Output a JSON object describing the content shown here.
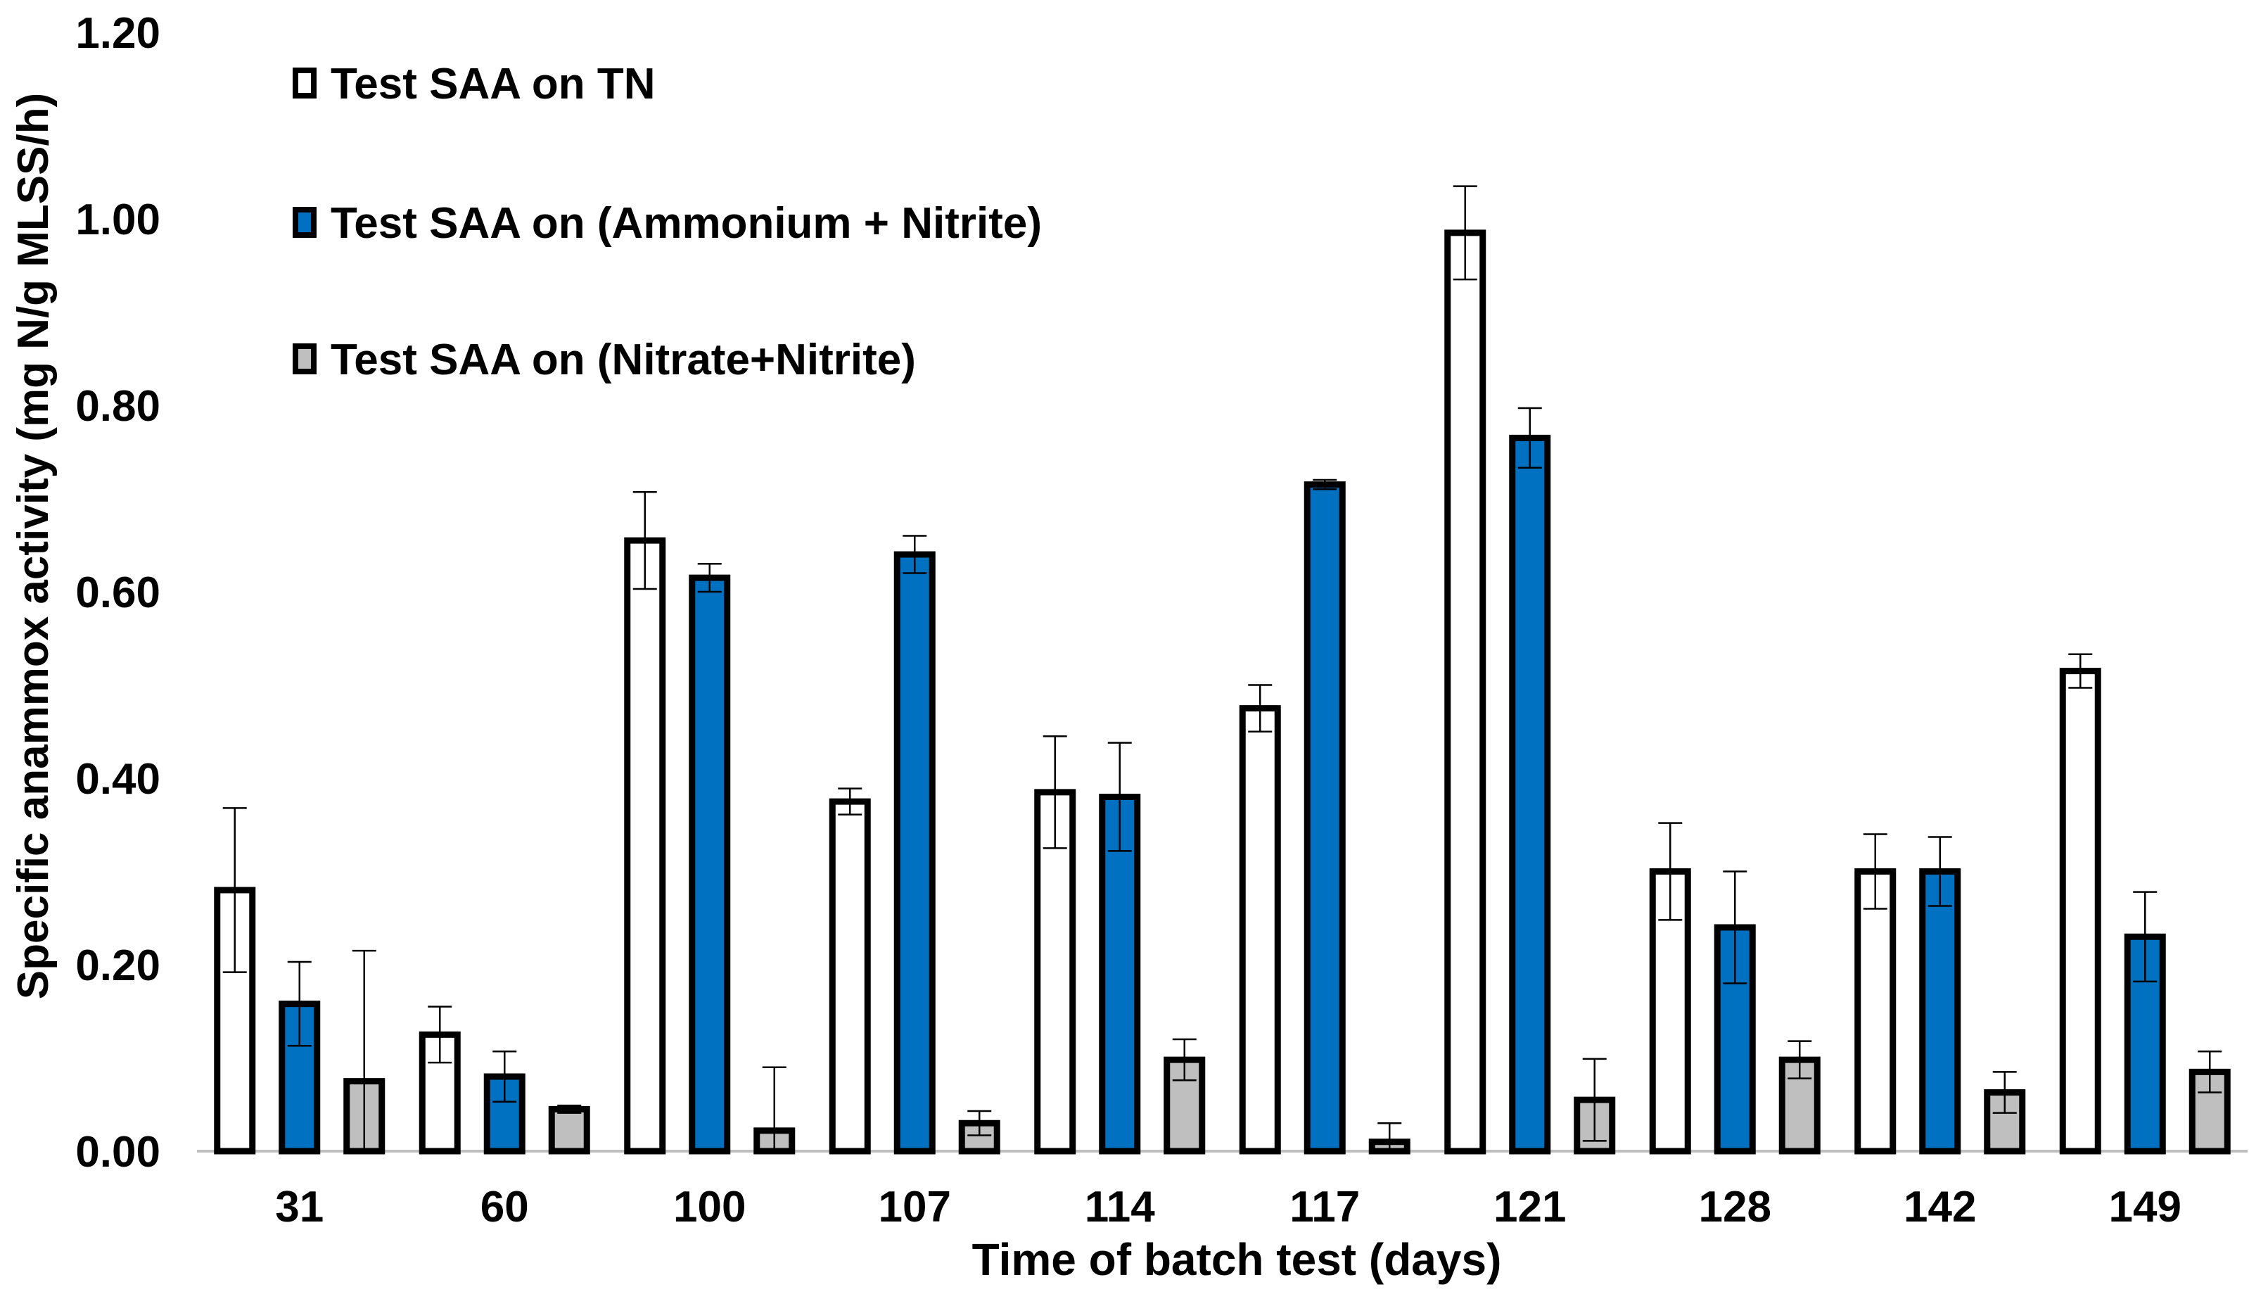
{
  "chart_data": {
    "type": "bar",
    "title": "",
    "xlabel": "Time of batch test (days)",
    "ylabel": "Specific anammox activity (mg N/g MLSS/h)",
    "ylim": [
      0,
      1.2
    ],
    "y_ticks": [
      "0.00",
      "0.20",
      "0.40",
      "0.60",
      "0.80",
      "1.00",
      "1.20"
    ],
    "y_tick_values": [
      0,
      0.2,
      0.4,
      0.6,
      0.8,
      1.0,
      1.2
    ],
    "categories": [
      "31",
      "60",
      "100",
      "107",
      "114",
      "117",
      "121",
      "128",
      "142",
      "149"
    ],
    "legend_position": "top-left",
    "series": [
      {
        "name": "Test SAA on TN",
        "color": "#ffffff",
        "values": [
          0.28,
          0.125,
          0.655,
          0.375,
          0.385,
          0.475,
          0.985,
          0.3,
          0.3,
          0.515
        ],
        "errors": [
          0.088,
          0.03,
          0.052,
          0.014,
          0.06,
          0.025,
          0.05,
          0.052,
          0.04,
          0.018
        ]
      },
      {
        "name": "Test SAA on (Ammonium + Nitrite)",
        "color": "#0070c0",
        "values": [
          0.158,
          0.08,
          0.615,
          0.64,
          0.38,
          0.715,
          0.765,
          0.24,
          0.3,
          0.23
        ],
        "errors": [
          0.045,
          0.027,
          0.015,
          0.02,
          0.058,
          0.005,
          0.032,
          0.06,
          0.037,
          0.048
        ]
      },
      {
        "name": "Test SAA on (Nitrate+Nitrite)",
        "color": "#bfbfbf",
        "values": [
          0.075,
          0.045,
          0.022,
          0.03,
          0.098,
          0.01,
          0.055,
          0.098,
          0.063,
          0.085
        ],
        "errors": [
          0.14,
          0.004,
          0.068,
          0.013,
          0.022,
          0.02,
          0.044,
          0.02,
          0.022,
          0.022
        ]
      }
    ]
  }
}
